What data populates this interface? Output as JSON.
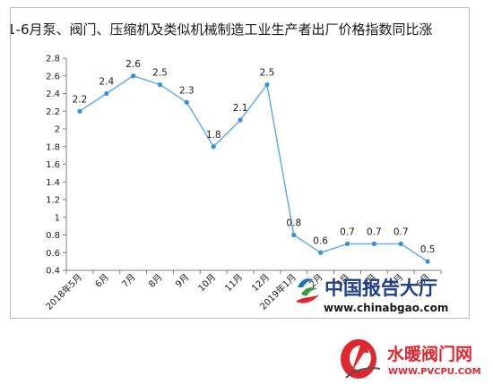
{
  "chart_data": {
    "type": "line",
    "title": "1-6月泵、阀门、压缩机及类似机械制造工业生产者出厂价格指数同比涨",
    "categories": [
      "2018年5月",
      "6月",
      "7月",
      "8月",
      "9月",
      "10月",
      "11月",
      "12月",
      "2019年1月",
      "2月",
      "3月",
      "4月",
      "5月",
      "6月"
    ],
    "values": [
      2.2,
      2.4,
      2.6,
      2.5,
      2.3,
      1.8,
      2.1,
      2.5,
      0.8,
      0.6,
      0.7,
      0.7,
      0.7,
      0.5
    ],
    "data_labels": [
      "2.2",
      "2.4",
      "2.6",
      "2.5",
      "2.3",
      "1.8",
      "2.1",
      "2.5",
      "0.8",
      "0.6",
      "0.7",
      "0.7",
      "0.7",
      "0.5"
    ],
    "yticks": [
      "0.4",
      "0.6",
      "0.8",
      "1",
      "1.2",
      "1.4",
      "1.6",
      "1.8",
      "2",
      "2.2",
      "2.4",
      "2.6",
      "2.8"
    ],
    "ylim": [
      0.4,
      2.8
    ],
    "grid": false,
    "legend": "none",
    "colors": {
      "line": "#5aa9e6",
      "marker": "#3a8fd9"
    }
  },
  "watermark": {
    "text": "中国报告大厅",
    "url": "www.chinabgao.com"
  },
  "brand": {
    "text": "水暖阀门网",
    "url": "WWW.PVCPU.COM"
  }
}
